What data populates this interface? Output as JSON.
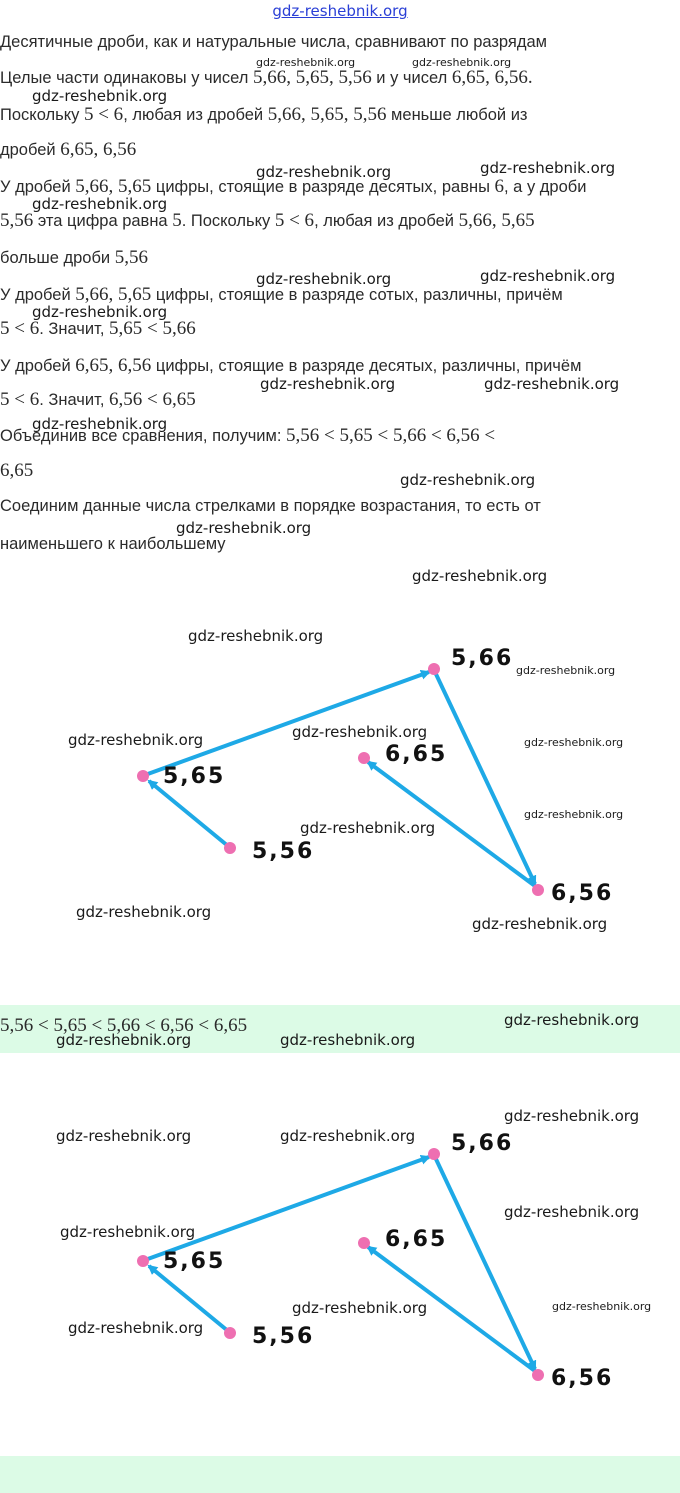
{
  "header": {
    "site_link": "gdz-reshebnik.org"
  },
  "watermark": "gdz-reshebnik.org",
  "paragraphs": {
    "p1": "Десятичные дроби, как и натуральные числа, сравнивают по разрядам",
    "p2a": "Целые части одинаковы у чисел ",
    "p2b": "5,66,  5,65,  5,56",
    "p2c": " и у чисел ",
    "p2d": "6,65,  6,56.",
    "p3a": "Поскольку ",
    "p3b": "5  <  6",
    "p3c": ", любая из дробей ",
    "p3d": "5,66,  5,65,  5,56",
    "p3e": " меньше любой из",
    "p4a": "дробей ",
    "p4b": "6,65,  6,56",
    "p5a": "У дробей ",
    "p5b": "5,66,  5,65",
    "p5c": " цифры, стоящие в разряде десятых, равны ",
    "p5d": "6",
    "p5e": ", а у дроби",
    "p6a": "5,56",
    "p6b": " эта цифра равна ",
    "p6c": "5",
    "p6d": ". Поскольку ",
    "p6e": "5  <  6",
    "p6f": ", любая из дробей ",
    "p6g": "5,66,  5,65",
    "p7a": "больше дроби ",
    "p7b": "5,56",
    "p8a": "У дробей ",
    "p8b": "5,66,  5,65",
    "p8c": " цифры, стоящие в разряде сотых, различны, причём",
    "p9a": "5  <  6",
    "p9b": ". Значит, ",
    "p9c": "5,65  <  5,66",
    "p10a": "У дробей ",
    "p10b": "6,65,  6,56",
    "p10c": " цифры, стоящие в разряде десятых, различны, причём",
    "p11a": "5  <  6",
    "p11b": ". Значит, ",
    "p11c": "6,56  <  6,65",
    "p12a": "Объединив все сравнения, получим: ",
    "p12b": "5,56  <  5,65  <  5,66  <  6,56  <",
    "p13": "6,65",
    "p14": "Соединим данные числа стрелками в порядке возрастания, то есть от",
    "p15": "наименьшего к наибольшему"
  },
  "answer": {
    "text": "5,56  <  5,65  <  5,66  <  6,56  <  6,65"
  },
  "diagram": {
    "nodes": {
      "n556": "5,56",
      "n565": "5,65",
      "n566": "5,66",
      "n656": "6,56",
      "n665": "6,65"
    },
    "colors": {
      "node": "#ee6fb1",
      "arrow": "#1ea9e6"
    }
  }
}
